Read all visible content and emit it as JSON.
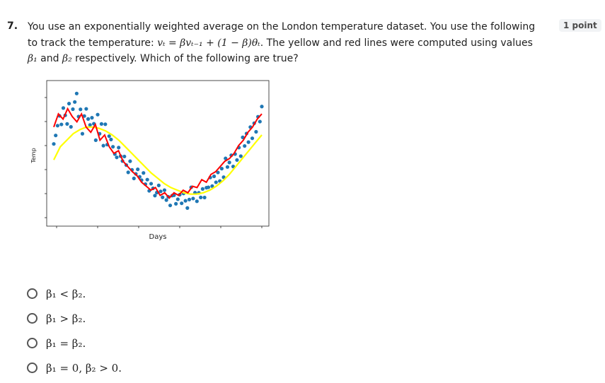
{
  "question": {
    "number": "7.",
    "text_part1": "You use an exponentially weighted average on the London temperature dataset. You use the following to track the temperature: ",
    "formula": "vₜ = βvₜ₋₁ + (1 − β)θₜ",
    "text_part2": ". The yellow and red lines were computed using values ",
    "beta1": "β₁",
    "text_part3": " and ",
    "beta2": "β₂",
    "text_part4": " respectively. Which of the following are true?",
    "points": "1 point"
  },
  "chart_data": {
    "type": "scatter",
    "xlabel": "Days",
    "ylabel": "Temp",
    "colors": {
      "points": "#1f77b4",
      "yellow_line": "#ffff00",
      "red_line": "#ff0000"
    },
    "points_y": [
      0.55,
      0.62,
      0.7,
      0.78,
      0.72,
      0.85,
      0.8,
      0.74,
      0.9,
      0.68,
      0.82,
      0.88,
      0.95,
      0.78,
      0.84,
      0.66,
      0.8,
      0.86,
      0.74,
      0.7,
      0.76,
      0.72,
      0.6,
      0.8,
      0.66,
      0.74,
      0.58,
      0.7,
      0.55,
      0.62,
      0.6,
      0.55,
      0.5,
      0.48,
      0.56,
      0.5,
      0.42,
      0.46,
      0.4,
      0.35,
      0.44,
      0.38,
      0.32,
      0.36,
      0.4,
      0.3,
      0.28,
      0.34,
      0.26,
      0.3,
      0.22,
      0.28,
      0.25,
      0.2,
      0.18,
      0.24,
      0.2,
      0.16,
      0.22,
      0.15,
      0.18,
      0.12,
      0.2,
      0.16,
      0.1,
      0.14,
      0.18,
      0.12,
      0.2,
      0.15,
      0.1,
      0.17,
      0.22,
      0.14,
      0.19,
      0.13,
      0.2,
      0.17,
      0.24,
      0.18,
      0.26,
      0.22,
      0.3,
      0.24,
      0.32,
      0.28,
      0.36,
      0.3,
      0.4,
      0.34,
      0.44,
      0.38,
      0.42,
      0.48,
      0.4,
      0.5,
      0.46,
      0.56,
      0.5,
      0.6,
      0.54,
      0.64,
      0.58,
      0.7,
      0.62,
      0.74,
      0.68,
      0.8,
      0.72,
      0.84
    ],
    "yellow_y": [
      0.45,
      0.55,
      0.6,
      0.65,
      0.68,
      0.7,
      0.7,
      0.69,
      0.67,
      0.64,
      0.6,
      0.55,
      0.5,
      0.45,
      0.4,
      0.35,
      0.31,
      0.27,
      0.24,
      0.22,
      0.2,
      0.19,
      0.19,
      0.2,
      0.22,
      0.25,
      0.29,
      0.34,
      0.4,
      0.46,
      0.52,
      0.58,
      0.64
    ],
    "red_y": [
      0.7,
      0.8,
      0.76,
      0.84,
      0.78,
      0.74,
      0.8,
      0.7,
      0.66,
      0.72,
      0.6,
      0.64,
      0.55,
      0.5,
      0.52,
      0.44,
      0.4,
      0.36,
      0.33,
      0.28,
      0.25,
      0.22,
      0.24,
      0.18,
      0.2,
      0.16,
      0.2,
      0.18,
      0.22,
      0.2,
      0.25,
      0.24,
      0.3,
      0.28,
      0.34,
      0.36,
      0.4,
      0.44,
      0.46,
      0.5,
      0.56,
      0.6,
      0.66,
      0.7,
      0.76,
      0.8
    ]
  },
  "options": [
    {
      "label": "β₁ < β₂."
    },
    {
      "label": "β₁ > β₂."
    },
    {
      "label": "β₁ = β₂."
    },
    {
      "label": "β₁ = 0, β₂ > 0."
    }
  ]
}
